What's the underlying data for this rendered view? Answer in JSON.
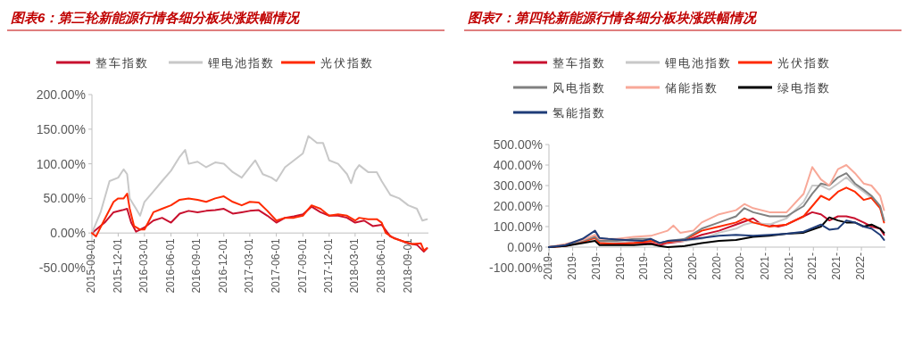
{
  "chart_data": [
    {
      "type": "line",
      "title": "图表6：第三轮新能源行情各细分板块涨跌幅情况",
      "legend": "top",
      "xlim": [
        "2015-09-01",
        "2018-11-10"
      ],
      "xticks": [
        "2015-09-01",
        "2015-12-01",
        "2016-03-01",
        "2016-06-01",
        "2016-09-01",
        "2016-12-01",
        "2017-03-01",
        "2017-06-01",
        "2017-09-01",
        "2017-12-01",
        "2018-03-01",
        "2018-06-01",
        "2018-09-01"
      ],
      "ylim": [
        -50,
        200
      ],
      "yticks": [
        {
          "value": -50,
          "label": "-50.00%"
        },
        {
          "value": 0,
          "label": "0.00%"
        },
        {
          "value": 50,
          "label": "50.00%"
        },
        {
          "value": 100,
          "label": "100.00%"
        },
        {
          "value": 150,
          "label": "150.00%"
        },
        {
          "value": 200,
          "label": "200.00%"
        }
      ],
      "series": [
        {
          "name": "整车指数",
          "color": "#c8102e",
          "x": [
            "2015-09-01",
            "2015-10-15",
            "2015-11-15",
            "2015-12-15",
            "2016-01-01",
            "2016-01-15",
            "2016-02-01",
            "2016-03-01",
            "2016-04-01",
            "2016-05-01",
            "2016-06-01",
            "2016-07-01",
            "2016-08-01",
            "2016-09-01",
            "2016-10-01",
            "2016-11-01",
            "2016-12-01",
            "2017-01-01",
            "2017-02-01",
            "2017-03-01",
            "2017-04-01",
            "2017-05-01",
            "2017-06-01",
            "2017-07-01",
            "2017-08-01",
            "2017-09-01",
            "2017-10-01",
            "2017-11-01",
            "2017-12-01",
            "2018-01-01",
            "2018-02-01",
            "2018-03-01",
            "2018-04-01",
            "2018-05-01",
            "2018-06-01",
            "2018-07-01",
            "2018-08-01",
            "2018-09-01",
            "2018-10-01",
            "2018-10-25",
            "2018-11-05"
          ],
          "values": [
            0,
            15,
            30,
            33,
            35,
            15,
            2,
            8,
            18,
            22,
            15,
            28,
            32,
            30,
            32,
            33,
            35,
            28,
            30,
            32,
            33,
            25,
            15,
            22,
            24,
            27,
            38,
            30,
            25,
            25,
            22,
            15,
            18,
            10,
            12,
            -5,
            -10,
            -15,
            -17,
            -27,
            -22
          ]
        },
        {
          "name": "锂电池指数",
          "color": "#c8c8c8",
          "x": [
            "2015-09-01",
            "2015-10-01",
            "2015-11-01",
            "2015-12-01",
            "2015-12-20",
            "2016-01-01",
            "2016-01-10",
            "2016-02-01",
            "2016-02-15",
            "2016-03-01",
            "2016-04-01",
            "2016-05-01",
            "2016-06-01",
            "2016-07-01",
            "2016-07-20",
            "2016-08-01",
            "2016-09-01",
            "2016-10-01",
            "2016-11-01",
            "2016-12-01",
            "2017-01-01",
            "2017-02-01",
            "2017-03-01",
            "2017-03-20",
            "2017-04-15",
            "2017-05-15",
            "2017-06-01",
            "2017-07-01",
            "2017-08-01",
            "2017-09-01",
            "2017-09-20",
            "2017-10-20",
            "2017-11-10",
            "2017-12-01",
            "2018-01-01",
            "2018-02-01",
            "2018-02-15",
            "2018-03-01",
            "2018-03-15",
            "2018-04-15",
            "2018-05-15",
            "2018-06-01",
            "2018-07-01",
            "2018-08-01",
            "2018-09-01",
            "2018-10-01",
            "2018-10-20",
            "2018-11-05"
          ],
          "values": [
            0,
            30,
            75,
            80,
            92,
            85,
            50,
            35,
            25,
            45,
            60,
            75,
            90,
            110,
            120,
            100,
            103,
            95,
            102,
            100,
            88,
            80,
            95,
            105,
            85,
            80,
            75,
            95,
            105,
            115,
            140,
            130,
            130,
            105,
            100,
            85,
            72,
            90,
            98,
            88,
            88,
            75,
            55,
            50,
            40,
            35,
            18,
            20
          ]
        },
        {
          "name": "光伏指数",
          "color": "#ff2a00",
          "x": [
            "2015-09-01",
            "2015-09-15",
            "2015-10-15",
            "2015-11-15",
            "2015-12-01",
            "2015-12-20",
            "2016-01-01",
            "2016-01-10",
            "2016-01-25",
            "2016-02-15",
            "2016-03-01",
            "2016-04-01",
            "2016-05-01",
            "2016-06-01",
            "2016-07-01",
            "2016-08-01",
            "2016-09-01",
            "2016-10-01",
            "2016-11-01",
            "2016-12-01",
            "2017-01-01",
            "2017-02-01",
            "2017-03-01",
            "2017-04-01",
            "2017-05-01",
            "2017-06-01",
            "2017-07-01",
            "2017-08-01",
            "2017-09-01",
            "2017-10-01",
            "2017-11-01",
            "2017-12-01",
            "2018-01-01",
            "2018-02-01",
            "2018-03-01",
            "2018-03-15",
            "2018-04-15",
            "2018-05-15",
            "2018-06-01",
            "2018-06-15",
            "2018-07-15",
            "2018-08-15",
            "2018-09-15",
            "2018-10-15",
            "2018-10-25",
            "2018-11-05"
          ],
          "values": [
            0,
            -5,
            20,
            45,
            50,
            50,
            57,
            35,
            10,
            5,
            5,
            30,
            35,
            40,
            48,
            50,
            48,
            45,
            50,
            53,
            45,
            40,
            45,
            44,
            32,
            18,
            22,
            22,
            25,
            40,
            35,
            25,
            27,
            25,
            18,
            22,
            20,
            20,
            15,
            0,
            -8,
            -12,
            -16,
            -15,
            -25,
            -22
          ]
        }
      ]
    },
    {
      "type": "line",
      "title": "图表7：第四轮新能源行情各细分板块涨跌幅情况",
      "legend": "top",
      "xlim": [
        "2019-01-01",
        "2022-04-20"
      ],
      "xticks": [
        {
          "value": "2019-01-02",
          "label": "2019-"
        },
        {
          "value": "2019-03-27",
          "label": "2019-"
        },
        {
          "value": "2019-06-21",
          "label": "2019-"
        },
        {
          "value": "2019-09-16",
          "label": "2019-"
        },
        {
          "value": "2019-12-10",
          "label": "2019-"
        },
        {
          "value": "2020-03-06",
          "label": "2020-"
        },
        {
          "value": "2020-06-01",
          "label": "2020-"
        },
        {
          "value": "2020-08-26",
          "label": "2020-"
        },
        {
          "value": "2020-11-19",
          "label": "2020-"
        },
        {
          "value": "2021-02-15",
          "label": "2021-"
        },
        {
          "value": "2021-05-11",
          "label": "2021-"
        },
        {
          "value": "2021-08-05",
          "label": "2021-"
        },
        {
          "value": "2021-10-30",
          "label": "2021-"
        },
        {
          "value": "2022-01-24",
          "label": "2022-"
        }
      ],
      "ylim": [
        -100,
        500
      ],
      "yticks": [
        {
          "value": -100,
          "label": "-100.00%"
        },
        {
          "value": 0,
          "label": "0.00%"
        },
        {
          "value": 100,
          "label": "100.00%"
        },
        {
          "value": 200,
          "label": "200.00%"
        },
        {
          "value": 300,
          "label": "300.00%"
        },
        {
          "value": 400,
          "label": "400.00%"
        },
        {
          "value": 500,
          "label": "500.00%"
        }
      ],
      "series": [
        {
          "name": "整车指数",
          "color": "#c8102e",
          "x": [
            "2019-01-01",
            "2019-03-01",
            "2019-05-01",
            "2019-06-15",
            "2019-07-01",
            "2019-09-01",
            "2019-11-01",
            "2020-01-01",
            "2020-02-01",
            "2020-03-01",
            "2020-05-01",
            "2020-07-01",
            "2020-09-01",
            "2020-11-01",
            "2021-01-01",
            "2021-02-01",
            "2021-03-01",
            "2021-04-01",
            "2021-05-01",
            "2021-07-01",
            "2021-08-01",
            "2021-09-01",
            "2021-10-01",
            "2021-11-01",
            "2021-12-01",
            "2022-01-01",
            "2022-02-01",
            "2022-03-01",
            "2022-04-01",
            "2022-04-15"
          ],
          "values": [
            0,
            10,
            30,
            50,
            20,
            20,
            20,
            20,
            10,
            20,
            30,
            60,
            80,
            110,
            140,
            110,
            110,
            100,
            110,
            150,
            170,
            160,
            130,
            150,
            150,
            140,
            120,
            100,
            90,
            60
          ]
        },
        {
          "name": "锂电池指数",
          "color": "#c8c8c8",
          "x": [
            "2019-01-01",
            "2019-03-01",
            "2019-05-01",
            "2019-06-15",
            "2019-07-01",
            "2019-09-01",
            "2019-11-01",
            "2020-01-01",
            "2020-02-01",
            "2020-03-01",
            "2020-05-01",
            "2020-07-01",
            "2020-09-01",
            "2020-11-01",
            "2020-12-01",
            "2021-01-01",
            "2021-03-01",
            "2021-05-01",
            "2021-07-01",
            "2021-08-01",
            "2021-09-01",
            "2021-10-01",
            "2021-11-01",
            "2021-12-01",
            "2022-01-01",
            "2022-02-01",
            "2022-03-01",
            "2022-04-01",
            "2022-04-15"
          ],
          "values": [
            0,
            10,
            25,
            40,
            20,
            25,
            30,
            40,
            20,
            25,
            30,
            40,
            70,
            90,
            110,
            120,
            110,
            140,
            220,
            300,
            300,
            280,
            310,
            340,
            300,
            270,
            240,
            190,
            130
          ]
        },
        {
          "name": "光伏指数",
          "color": "#ff2a00",
          "x": [
            "2019-01-01",
            "2019-03-01",
            "2019-05-01",
            "2019-06-15",
            "2019-07-01",
            "2019-09-01",
            "2019-11-01",
            "2020-01-01",
            "2020-02-01",
            "2020-03-01",
            "2020-05-01",
            "2020-07-01",
            "2020-09-01",
            "2020-11-01",
            "2020-12-01",
            "2021-01-01",
            "2021-03-01",
            "2021-05-01",
            "2021-07-01",
            "2021-08-01",
            "2021-09-01",
            "2021-10-01",
            "2021-11-01",
            "2021-12-01",
            "2022-01-01",
            "2022-02-01",
            "2022-03-01",
            "2022-04-01",
            "2022-04-15"
          ],
          "values": [
            0,
            5,
            25,
            45,
            20,
            15,
            20,
            30,
            20,
            25,
            35,
            80,
            100,
            120,
            140,
            120,
            100,
            110,
            150,
            200,
            250,
            230,
            270,
            290,
            270,
            230,
            240,
            190,
            120
          ]
        },
        {
          "name": "风电指数",
          "color": "#808080",
          "x": [
            "2019-01-01",
            "2019-03-01",
            "2019-05-01",
            "2019-06-15",
            "2019-07-01",
            "2019-09-01",
            "2019-11-01",
            "2020-01-01",
            "2020-02-01",
            "2020-03-01",
            "2020-05-01",
            "2020-07-01",
            "2020-09-01",
            "2020-11-01",
            "2020-12-01",
            "2021-01-01",
            "2021-03-01",
            "2021-05-01",
            "2021-07-01",
            "2021-08-01",
            "2021-09-01",
            "2021-10-01",
            "2021-11-01",
            "2021-12-01",
            "2022-01-01",
            "2022-02-01",
            "2022-03-01",
            "2022-04-01",
            "2022-04-15"
          ],
          "values": [
            0,
            10,
            30,
            50,
            30,
            30,
            40,
            40,
            20,
            30,
            40,
            90,
            120,
            150,
            190,
            170,
            150,
            150,
            200,
            260,
            310,
            300,
            340,
            360,
            310,
            280,
            250,
            200,
            130
          ]
        },
        {
          "name": "储能指数",
          "color": "#f8a898",
          "x": [
            "2019-01-01",
            "2019-03-01",
            "2019-05-01",
            "2019-06-15",
            "2019-07-01",
            "2019-09-01",
            "2019-11-01",
            "2020-01-01",
            "2020-03-01",
            "2020-03-22",
            "2020-04-15",
            "2020-06-01",
            "2020-07-01",
            "2020-09-01",
            "2020-11-01",
            "2020-12-01",
            "2021-01-01",
            "2021-03-01",
            "2021-05-01",
            "2021-07-01",
            "2021-08-01",
            "2021-09-01",
            "2021-10-01",
            "2021-11-01",
            "2021-12-01",
            "2022-01-01",
            "2022-02-01",
            "2022-03-01",
            "2022-04-01",
            "2022-04-15"
          ],
          "values": [
            0,
            15,
            35,
            60,
            40,
            40,
            50,
            55,
            80,
            105,
            70,
            80,
            120,
            160,
            180,
            210,
            190,
            170,
            170,
            260,
            390,
            330,
            300,
            380,
            400,
            360,
            310,
            300,
            250,
            180
          ]
        },
        {
          "name": "绿电指数",
          "color": "#000000",
          "x": [
            "2019-01-01",
            "2019-03-01",
            "2019-05-01",
            "2019-06-15",
            "2019-07-01",
            "2019-09-01",
            "2019-11-01",
            "2020-01-01",
            "2020-02-01",
            "2020-03-01",
            "2020-05-01",
            "2020-07-01",
            "2020-09-01",
            "2020-11-01",
            "2021-01-01",
            "2021-03-01",
            "2021-05-01",
            "2021-07-01",
            "2021-09-01",
            "2021-10-01",
            "2021-11-01",
            "2021-12-01",
            "2022-01-01",
            "2022-02-01",
            "2022-03-01",
            "2022-04-01",
            "2022-04-15"
          ],
          "values": [
            0,
            5,
            20,
            30,
            10,
            10,
            10,
            15,
            5,
            0,
            5,
            20,
            30,
            35,
            50,
            55,
            65,
            70,
            100,
            145,
            130,
            120,
            120,
            100,
            110,
            90,
            70
          ]
        },
        {
          "name": "氢能指数",
          "color": "#1f3c78",
          "x": [
            "2019-01-01",
            "2019-03-01",
            "2019-05-01",
            "2019-06-15",
            "2019-07-01",
            "2019-08-01",
            "2019-10-01",
            "2019-12-01",
            "2020-01-01",
            "2020-02-01",
            "2020-03-01",
            "2020-05-01",
            "2020-07-01",
            "2020-09-01",
            "2020-11-01",
            "2021-01-01",
            "2021-03-01",
            "2021-05-01",
            "2021-07-01",
            "2021-09-01",
            "2021-10-01",
            "2021-11-01",
            "2021-12-01",
            "2022-01-01",
            "2022-02-01",
            "2022-03-01",
            "2022-04-01",
            "2022-04-15"
          ],
          "values": [
            0,
            10,
            40,
            80,
            45,
            40,
            35,
            30,
            40,
            20,
            30,
            35,
            45,
            55,
            60,
            55,
            60,
            65,
            75,
            110,
            85,
            90,
            130,
            120,
            100,
            90,
            60,
            35
          ]
        }
      ]
    }
  ]
}
